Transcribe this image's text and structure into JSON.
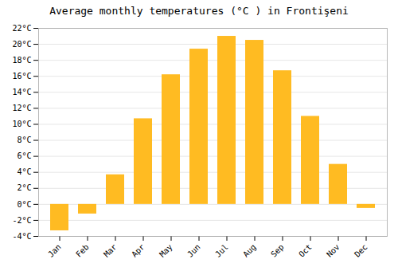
{
  "chart_data": {
    "type": "bar",
    "title": "Average monthly temperatures (°C ) in Frontişeni",
    "categories": [
      "Jan",
      "Feb",
      "Mar",
      "Apr",
      "May",
      "Jun",
      "Jul",
      "Aug",
      "Sep",
      "Oct",
      "Nov",
      "Dec"
    ],
    "values": [
      -3.3,
      -1.2,
      3.7,
      10.7,
      16.2,
      19.4,
      21.0,
      20.5,
      16.7,
      11.0,
      5.0,
      -0.5
    ],
    "color": "#FFBB22",
    "ylim": [
      -4,
      22
    ],
    "yticks": [
      {
        "value": -4,
        "label": "-4°C"
      },
      {
        "value": -2,
        "label": "-2°C"
      },
      {
        "value": 0,
        "label": "0°C"
      },
      {
        "value": 2,
        "label": "2°C"
      },
      {
        "value": 4,
        "label": "4°C"
      },
      {
        "value": 6,
        "label": "6°C"
      },
      {
        "value": 8,
        "label": "8°C"
      },
      {
        "value": 10,
        "label": "10°C"
      },
      {
        "value": 12,
        "label": "12°C"
      },
      {
        "value": 14,
        "label": "14°C"
      },
      {
        "value": 16,
        "label": "16°C"
      },
      {
        "value": 18,
        "label": "18°C"
      },
      {
        "value": 20,
        "label": "20°C"
      },
      {
        "value": 22,
        "label": "22°C"
      }
    ],
    "grid": true
  }
}
